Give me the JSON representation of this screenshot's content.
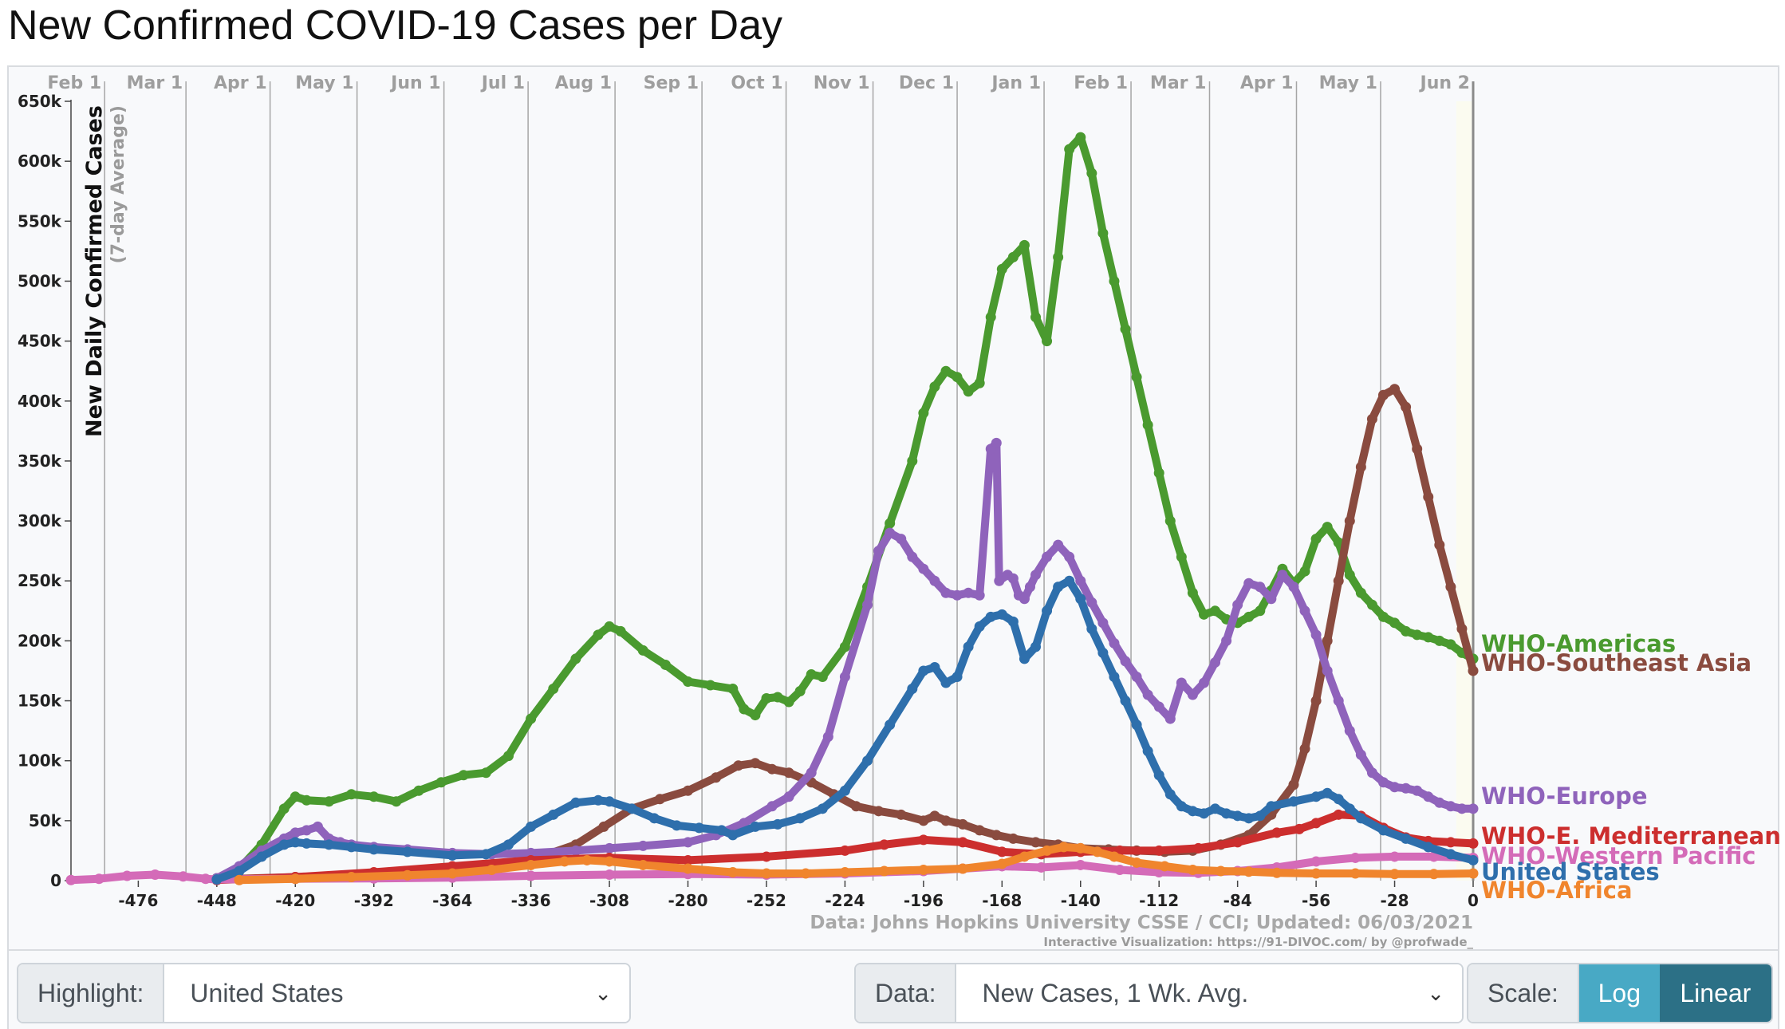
{
  "title": "New Confirmed COVID-19 Cases per Day",
  "controls": {
    "highlight_label": "Highlight:",
    "highlight_value": "United States",
    "data_label": "Data:",
    "data_value": "New Cases, 1 Wk. Avg.",
    "scale_label": "Scale:",
    "scale_log": "Log",
    "scale_linear": "Linear"
  },
  "chart_data": {
    "type": "line",
    "ylabel": "New Daily Confirmed Cases",
    "ylabel_sub": "(7-day Average)",
    "ylim": [
      0,
      650000
    ],
    "xlim": [
      -500,
      0
    ],
    "y_ticks": [
      0,
      50000,
      100000,
      150000,
      200000,
      250000,
      300000,
      350000,
      400000,
      450000,
      500000,
      550000,
      600000,
      650000
    ],
    "y_tick_labels": [
      "0",
      "50k",
      "100k",
      "150k",
      "200k",
      "250k",
      "300k",
      "350k",
      "400k",
      "450k",
      "500k",
      "550k",
      "600k",
      "650k"
    ],
    "x_ticks": [
      -476,
      -448,
      -420,
      -392,
      -364,
      -336,
      -308,
      -280,
      -252,
      -224,
      -196,
      -168,
      -140,
      -112,
      -84,
      -56,
      -28,
      0
    ],
    "month_labels": [
      "Feb 1",
      "Mar 1",
      "Apr 1",
      "May 1",
      "Jun 1",
      "Jul 1",
      "Aug 1",
      "Sep 1",
      "Oct 1",
      "Nov 1",
      "Dec 1",
      "Jan 1",
      "Feb 1",
      "Mar 1",
      "Apr 1",
      "May 1",
      "Jun 2"
    ],
    "month_days": [
      -488,
      -459,
      -429,
      -398,
      -367,
      -337,
      -306,
      -275,
      -245,
      -214,
      -184,
      -153,
      -122,
      -94,
      -63,
      -33,
      0
    ],
    "footer_source": "Data: Johns Hopkins University CSSE / CCI; Updated: 06/03/2021",
    "footer_credit": "Interactive Visualization: https://91-DIVOC.com/ by @profwade_",
    "series": [
      {
        "name": "WHO-Americas",
        "color": "#4a9a2f",
        "stroke_width": 10,
        "x": [
          -448,
          -440,
          -432,
          -424,
          -420,
          -416,
          -408,
          -400,
          -392,
          -384,
          -376,
          -368,
          -360,
          -352,
          -344,
          -336,
          -328,
          -320,
          -312,
          -308,
          -304,
          -296,
          -288,
          -280,
          -272,
          -264,
          -260,
          -256,
          -252,
          -248,
          -244,
          -240,
          -236,
          -232,
          -224,
          -216,
          -208,
          -200,
          -196,
          -192,
          -188,
          -184,
          -180,
          -176,
          -172,
          -168,
          -164,
          -160,
          -156,
          -152,
          -148,
          -144,
          -140,
          -136,
          -132,
          -128,
          -124,
          -120,
          -116,
          -112,
          -108,
          -104,
          -100,
          -96,
          -92,
          -88,
          -84,
          -80,
          -76,
          -72,
          -68,
          -64,
          -60,
          -56,
          -52,
          -48,
          -44,
          -40,
          -36,
          -32,
          -28,
          -24,
          -20,
          -16,
          -12,
          -8,
          -4,
          0
        ],
        "y": [
          2000,
          10000,
          30000,
          60000,
          70000,
          67000,
          66000,
          72000,
          70000,
          66000,
          75000,
          82000,
          88000,
          90000,
          104000,
          135000,
          160000,
          185000,
          205000,
          212000,
          208000,
          192000,
          180000,
          166000,
          163000,
          160000,
          143000,
          138000,
          152000,
          153000,
          149000,
          158000,
          172000,
          170000,
          195000,
          245000,
          298000,
          350000,
          390000,
          412000,
          425000,
          420000,
          408000,
          415000,
          470000,
          510000,
          520000,
          530000,
          470000,
          450000,
          520000,
          610000,
          620000,
          590000,
          540000,
          500000,
          460000,
          420000,
          380000,
          340000,
          300000,
          270000,
          240000,
          222000,
          225000,
          218000,
          215000,
          220000,
          225000,
          242000,
          260000,
          248000,
          258000,
          285000,
          295000,
          282000,
          255000,
          240000,
          230000,
          220000,
          215000,
          208000,
          205000,
          203000,
          200000,
          197000,
          190000,
          185000
        ]
      },
      {
        "name": "WHO-Southeast Asia",
        "color": "#8a4b3f",
        "stroke_width": 10,
        "x": [
          -448,
          -420,
          -392,
          -364,
          -340,
          -330,
          -320,
          -310,
          -300,
          -290,
          -280,
          -270,
          -262,
          -256,
          -250,
          -244,
          -236,
          -228,
          -220,
          -212,
          -204,
          -196,
          -192,
          -188,
          -182,
          -176,
          -170,
          -164,
          -156,
          -148,
          -140,
          -130,
          -120,
          -110,
          -100,
          -90,
          -80,
          -72,
          -64,
          -60,
          -56,
          -52,
          -48,
          -44,
          -40,
          -36,
          -32,
          -28,
          -24,
          -20,
          -16,
          -12,
          -8,
          -4,
          0
        ],
        "y": [
          1000,
          3000,
          5000,
          8000,
          15000,
          22000,
          30000,
          45000,
          60000,
          68000,
          75000,
          86000,
          96000,
          98000,
          93000,
          90000,
          82000,
          72000,
          62000,
          58000,
          55000,
          50000,
          54000,
          50000,
          47000,
          42000,
          38000,
          35000,
          32000,
          30000,
          27000,
          26000,
          25000,
          24000,
          25000,
          30000,
          38000,
          55000,
          80000,
          110000,
          150000,
          200000,
          250000,
          300000,
          345000,
          385000,
          405000,
          410000,
          395000,
          360000,
          320000,
          280000,
          245000,
          210000,
          175000
        ]
      },
      {
        "name": "WHO-Europe",
        "color": "#8f63bb",
        "stroke_width": 10,
        "x": [
          -448,
          -440,
          -432,
          -424,
          -420,
          -416,
          -412,
          -408,
          -404,
          -400,
          -392,
          -380,
          -364,
          -350,
          -336,
          -320,
          -308,
          -296,
          -280,
          -270,
          -260,
          -250,
          -244,
          -236,
          -230,
          -224,
          -216,
          -212,
          -208,
          -204,
          -200,
          -196,
          -192,
          -188,
          -184,
          -180,
          -176,
          -172,
          -170,
          -169,
          -166,
          -164,
          -162,
          -160,
          -158,
          -156,
          -152,
          -148,
          -144,
          -140,
          -136,
          -132,
          -128,
          -124,
          -120,
          -116,
          -112,
          -108,
          -104,
          -100,
          -96,
          -92,
          -88,
          -84,
          -80,
          -76,
          -72,
          -68,
          -64,
          -60,
          -56,
          -52,
          -48,
          -44,
          -40,
          -36,
          -32,
          -28,
          -24,
          -20,
          -16,
          -12,
          -8,
          -4,
          0
        ],
        "y": [
          2000,
          12000,
          25000,
          35000,
          40000,
          42000,
          45000,
          35000,
          32000,
          30000,
          28000,
          26000,
          23000,
          22000,
          23000,
          25000,
          27000,
          29000,
          32000,
          38000,
          48000,
          62000,
          70000,
          90000,
          120000,
          170000,
          230000,
          275000,
          290000,
          285000,
          270000,
          260000,
          250000,
          240000,
          238000,
          240000,
          238000,
          360000,
          365000,
          250000,
          255000,
          252000,
          238000,
          235000,
          245000,
          255000,
          270000,
          280000,
          270000,
          250000,
          232000,
          215000,
          198000,
          183000,
          170000,
          155000,
          145000,
          135000,
          165000,
          155000,
          165000,
          182000,
          200000,
          230000,
          248000,
          245000,
          235000,
          255000,
          245000,
          225000,
          205000,
          175000,
          150000,
          125000,
          105000,
          90000,
          82000,
          78000,
          77000,
          75000,
          70000,
          65000,
          62000,
          60000,
          60000
        ]
      },
      {
        "name": "WHO-E. Mediterranean",
        "color": "#cc2e2e",
        "stroke_width": 10,
        "x": [
          -448,
          -420,
          -392,
          -364,
          -336,
          -308,
          -280,
          -252,
          -224,
          -210,
          -196,
          -182,
          -168,
          -154,
          -140,
          -126,
          -112,
          -98,
          -84,
          -70,
          -62,
          -56,
          -48,
          -40,
          -32,
          -24,
          -16,
          -8,
          0
        ],
        "y": [
          500,
          3000,
          7000,
          12000,
          17000,
          19000,
          17000,
          20000,
          25000,
          30000,
          34000,
          32000,
          24000,
          22000,
          24000,
          25000,
          25000,
          27000,
          32000,
          40000,
          43000,
          48000,
          55000,
          54000,
          44000,
          36000,
          33000,
          32000,
          31000
        ]
      },
      {
        "name": "WHO-Western Pacific",
        "color": "#d46bb8",
        "stroke_width": 10,
        "x": [
          -500,
          -490,
          -480,
          -470,
          -460,
          -452,
          -448,
          -420,
          -392,
          -364,
          -336,
          -308,
          -280,
          -252,
          -224,
          -196,
          -182,
          -168,
          -154,
          -140,
          -126,
          -112,
          -98,
          -84,
          -70,
          -56,
          -42,
          -28,
          -14,
          0
        ],
        "y": [
          500,
          1500,
          4000,
          5000,
          3500,
          1500,
          1000,
          1500,
          1800,
          2500,
          4000,
          5000,
          5500,
          5000,
          6000,
          8000,
          10000,
          12000,
          11000,
          13000,
          9000,
          7000,
          6500,
          8000,
          11000,
          16000,
          19000,
          20000,
          20000,
          19000
        ]
      },
      {
        "name": "United States",
        "color": "#2e6fac",
        "stroke_width": 10,
        "x": [
          -448,
          -440,
          -432,
          -424,
          -420,
          -416,
          -408,
          -400,
          -392,
          -380,
          -364,
          -352,
          -344,
          -336,
          -328,
          -320,
          -312,
          -308,
          -300,
          -292,
          -284,
          -276,
          -268,
          -264,
          -256,
          -248,
          -240,
          -232,
          -224,
          -216,
          -208,
          -200,
          -196,
          -192,
          -188,
          -184,
          -180,
          -176,
          -172,
          -168,
          -164,
          -160,
          -156,
          -152,
          -148,
          -144,
          -140,
          -136,
          -132,
          -128,
          -124,
          -120,
          -116,
          -112,
          -108,
          -104,
          -100,
          -96,
          -92,
          -88,
          -84,
          -80,
          -76,
          -72,
          -64,
          -56,
          -52,
          -48,
          -44,
          -40,
          -32,
          -24,
          -16,
          -8,
          0
        ],
        "y": [
          1000,
          8000,
          20000,
          30000,
          32000,
          31000,
          30000,
          28000,
          26000,
          24000,
          21000,
          22000,
          30000,
          45000,
          55000,
          65000,
          67000,
          66000,
          60000,
          52000,
          46000,
          44000,
          42000,
          38000,
          45000,
          47000,
          52000,
          60000,
          75000,
          100000,
          130000,
          160000,
          175000,
          178000,
          165000,
          170000,
          195000,
          212000,
          220000,
          222000,
          216000,
          185000,
          195000,
          225000,
          245000,
          250000,
          235000,
          210000,
          190000,
          170000,
          150000,
          130000,
          108000,
          88000,
          72000,
          62000,
          58000,
          56000,
          60000,
          56000,
          54000,
          52000,
          54000,
          62000,
          66000,
          70000,
          73000,
          68000,
          60000,
          52000,
          42000,
          35000,
          28000,
          22000,
          17000
        ]
      },
      {
        "name": "WHO-Africa",
        "color": "#f0852d",
        "stroke_width": 10,
        "x": [
          -440,
          -420,
          -400,
          -380,
          -364,
          -350,
          -336,
          -324,
          -316,
          -308,
          -296,
          -280,
          -264,
          -252,
          -238,
          -224,
          -210,
          -196,
          -182,
          -168,
          -160,
          -152,
          -146,
          -140,
          -134,
          -128,
          -120,
          -110,
          -100,
          -90,
          -80,
          -70,
          -56,
          -42,
          -28,
          -14,
          0
        ],
        "y": [
          500,
          1500,
          3000,
          4500,
          6000,
          9000,
          13000,
          16000,
          17000,
          16000,
          13000,
          10000,
          7000,
          6000,
          6000,
          7000,
          8000,
          9000,
          10000,
          14000,
          20000,
          25000,
          28000,
          27000,
          24000,
          20000,
          15000,
          12000,
          9000,
          8000,
          7500,
          6500,
          6000,
          6000,
          5500,
          5500,
          6000
        ]
      }
    ],
    "end_labels": [
      {
        "series": "WHO-Americas",
        "text": "WHO-Americas",
        "color": "#4a9a2f"
      },
      {
        "series": "WHO-Southeast Asia",
        "text": "WHO-Southeast Asia",
        "color": "#8a4b3f"
      },
      {
        "series": "WHO-Europe",
        "text": "WHO-Europe",
        "color": "#8f63bb"
      },
      {
        "series": "WHO-E. Mediterranean",
        "text": "WHO-E. Mediterranean",
        "color": "#cc2e2e"
      },
      {
        "series": "WHO-Western Pacific",
        "text": "WHO-Western Pacific",
        "color": "#d46bb8"
      },
      {
        "series": "United States",
        "text": "United States",
        "color": "#2e6fac"
      },
      {
        "series": "WHO-Africa",
        "text": "WHO-Africa",
        "color": "#f0852d"
      }
    ]
  }
}
